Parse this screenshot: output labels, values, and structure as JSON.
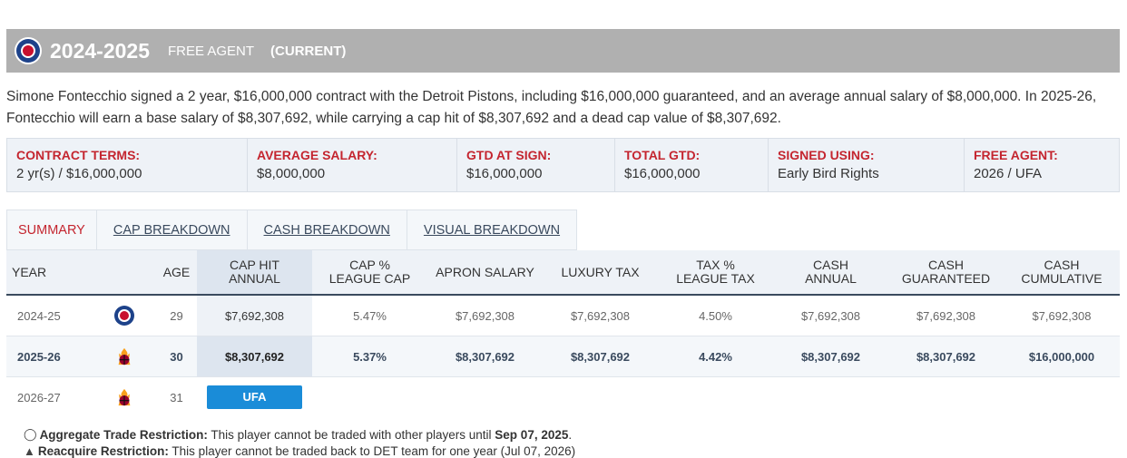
{
  "header": {
    "season": "2024-2025",
    "status": "FREE AGENT",
    "current": "(CURRENT)"
  },
  "summary": "Simone Fontecchio signed a 2 year, $16,000,000 contract with the Detroit Pistons, including $16,000,000 guaranteed, and an average annual salary of $8,000,000. In 2025-26, Fontecchio will earn a base salary of $8,307,692, while carrying a cap hit of $8,307,692 and a dead cap value of $8,307,692.",
  "terms": [
    {
      "label": "CONTRACT TERMS:",
      "value": "2 yr(s) / $16,000,000"
    },
    {
      "label": "AVERAGE SALARY:",
      "value": "$8,000,000"
    },
    {
      "label": "GTD AT SIGN:",
      "value": "$16,000,000"
    },
    {
      "label": "TOTAL GTD:",
      "value": "$16,000,000"
    },
    {
      "label": "SIGNED USING:",
      "value": "Early Bird Rights"
    },
    {
      "label": "FREE AGENT:",
      "value": "2026 / UFA"
    }
  ],
  "tabs": [
    "SUMMARY",
    "CAP BREAKDOWN",
    "CASH BREAKDOWN",
    "VISUAL BREAKDOWN"
  ],
  "table": {
    "headers": {
      "year": "YEAR",
      "age": "AGE",
      "cap_hit_1": "CAP HIT",
      "cap_hit_2": "ANNUAL",
      "cap_pct_1": "CAP %",
      "cap_pct_2": "LEAGUE CAP",
      "apron": "APRON SALARY",
      "lux": "LUXURY TAX",
      "tax_pct_1": "TAX %",
      "tax_pct_2": "LEAGUE TAX",
      "cash_annual_1": "CASH",
      "cash_annual_2": "ANNUAL",
      "cash_gtd_1": "CASH",
      "cash_gtd_2": "GUARANTEED",
      "cash_cum_1": "CASH",
      "cash_cum_2": "CUMULATIVE"
    },
    "rows": [
      {
        "year": "2024-25",
        "team_icon": "pistons-logo-icon",
        "age": "29",
        "cap_hit": "$7,692,308",
        "cap_pct": "5.47%",
        "apron": "$7,692,308",
        "lux": "$7,692,308",
        "tax_pct": "4.50%",
        "cash_annual": "$7,692,308",
        "cash_gtd": "$7,692,308",
        "cash_cum": "$7,692,308"
      },
      {
        "year": "2025-26",
        "team_icon": "heat-logo-icon",
        "age": "30",
        "cap_hit": "$8,307,692",
        "cap_pct": "5.37%",
        "apron": "$8,307,692",
        "lux": "$8,307,692",
        "tax_pct": "4.42%",
        "cash_annual": "$8,307,692",
        "cash_gtd": "$8,307,692",
        "cash_cum": "$16,000,000"
      },
      {
        "year": "2026-27",
        "team_icon": "heat-logo-icon",
        "age": "31",
        "status": "UFA"
      }
    ]
  },
  "restrictions": [
    {
      "title": "Aggregate Trade Restriction:",
      "text": " This player cannot be traded with other players until ",
      "date": "Sep 07, 2025",
      "end": "."
    },
    {
      "title": "Reacquire Restriction:",
      "text": " This player cannot be traded back to DET team for one year (Jul 07, 2026)",
      "date": "",
      "end": ""
    }
  ],
  "colors": {
    "accent": "#c4252f",
    "header_bar": "#b0b0b0",
    "ufa_badge": "#1a8cd8",
    "navy": "#3a4a5e"
  }
}
